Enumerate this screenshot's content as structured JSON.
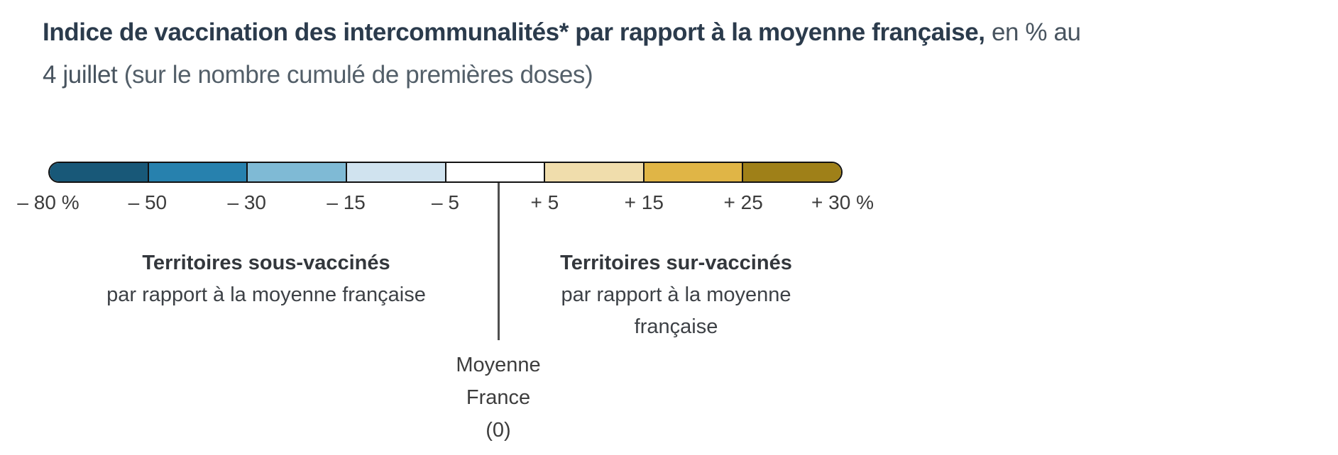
{
  "title": {
    "line1_bold": "Indice de vaccination des intercommunalités* par rapport à la moyenne française,",
    "line1_regular": "en % au",
    "line2_regular": "4 juillet",
    "line2_light": "(sur le nombre cumulé de premières doses)"
  },
  "colorbar": {
    "outline_color": "#121212",
    "segments": [
      {
        "name": "-80 to -50",
        "color": "#185878"
      },
      {
        "name": "-50 to -30",
        "color": "#2781ae"
      },
      {
        "name": "-30 to -15",
        "color": "#7fbad5"
      },
      {
        "name": "-15 to -5",
        "color": "#d0e3ef"
      },
      {
        "name": "-5 to +5",
        "color": "#ffffff"
      },
      {
        "name": "+5 to +15",
        "color": "#f0ddac"
      },
      {
        "name": "+15 to +25",
        "color": "#e0b546"
      },
      {
        "name": "+25 to +30",
        "color": "#9f8018"
      }
    ],
    "ticks": [
      "– 80 %",
      "– 50",
      "– 30",
      "– 15",
      "– 5",
      "+ 5",
      "+ 15",
      "+ 25",
      "+ 30 %"
    ]
  },
  "annotations": {
    "under": {
      "bold": "Territoires sous-vaccinés",
      "line2": "par rapport à la moyenne française"
    },
    "over": {
      "bold": "Territoires sur-vaccinés",
      "line2": "par rapport à la moyenne",
      "line3": "française"
    },
    "mean": {
      "line1": "Moyenne",
      "line2": "France",
      "line3": "(0)"
    }
  },
  "chart_data": {
    "type": "heatmap",
    "subtype": "choropleth-color-scale-legend",
    "title": "Indice de vaccination des intercommunalités* par rapport à la moyenne française, en % au 4 juillet (sur le nombre cumulé de premières doses)",
    "unit": "%",
    "bins": [
      {
        "from": -80,
        "to": -50,
        "color": "#185878"
      },
      {
        "from": -50,
        "to": -30,
        "color": "#2781ae"
      },
      {
        "from": -30,
        "to": -15,
        "color": "#7fbad5"
      },
      {
        "from": -15,
        "to": -5,
        "color": "#d0e3ef"
      },
      {
        "from": -5,
        "to": 5,
        "color": "#ffffff"
      },
      {
        "from": 5,
        "to": 15,
        "color": "#f0ddac"
      },
      {
        "from": 15,
        "to": 25,
        "color": "#e0b546"
      },
      {
        "from": 25,
        "to": 30,
        "color": "#9f8018"
      }
    ],
    "tick_labels": [
      "– 80 %",
      "– 50",
      "– 30",
      "– 15",
      "– 5",
      "+ 5",
      "+ 15",
      "+ 25",
      "+ 30 %"
    ],
    "reference": {
      "value": 0,
      "label": "Moyenne France (0)"
    },
    "annotations": [
      "Territoires sous-vaccinés par rapport à la moyenne française",
      "Territoires sur-vaccinés par rapport à la moyenne française"
    ],
    "legend_position": "standalone-horizontal",
    "grid": false
  }
}
